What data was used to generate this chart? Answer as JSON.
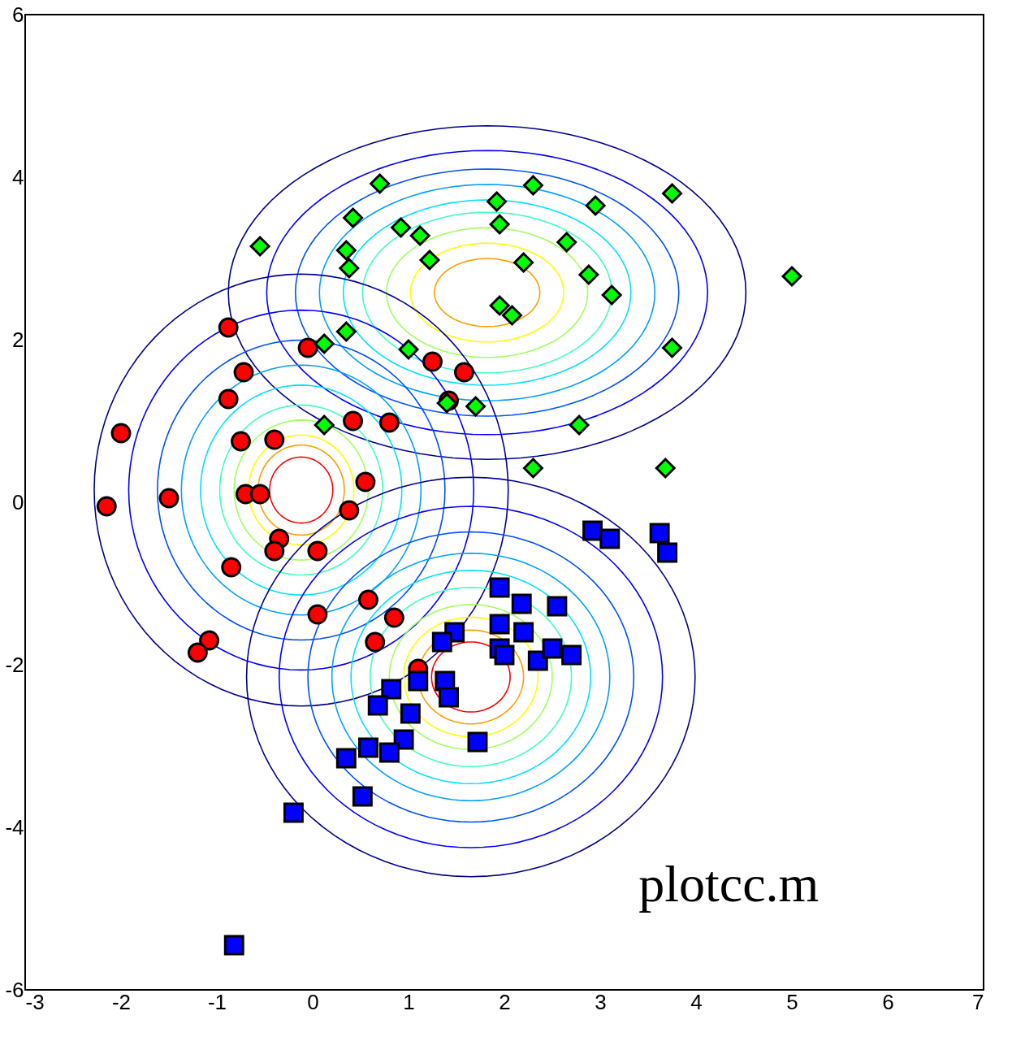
{
  "chart_data": {
    "type": "scatter",
    "xlim": [
      -3,
      7
    ],
    "ylim": [
      -6,
      6
    ],
    "xticks": [
      -3,
      -2,
      -1,
      0,
      1,
      2,
      3,
      4,
      5,
      6,
      7
    ],
    "yticks": [
      -6,
      -4,
      -2,
      0,
      2,
      4,
      6
    ],
    "grid": false,
    "legend": false,
    "annotations": [
      "plotcc.m"
    ],
    "series": [
      {
        "marker": "circle",
        "color": "#ff0000",
        "x": [
          -0.88,
          -0.05,
          -0.72,
          -0.88,
          -2.0,
          -0.75,
          -0.4,
          0.42,
          0.8,
          1.25,
          1.58,
          1.42,
          -2.15,
          -1.5,
          -0.7,
          -0.55,
          0.55,
          0.38,
          -0.35,
          -0.4,
          0.05,
          -0.85,
          0.05,
          0.58,
          0.85,
          0.65,
          -1.08,
          -1.2,
          1.1
        ],
        "values": [
          2.15,
          1.9,
          1.6,
          1.27,
          0.85,
          0.75,
          0.77,
          1.0,
          0.98,
          1.73,
          1.6,
          1.25,
          -0.05,
          0.05,
          0.1,
          0.1,
          0.25,
          -0.1,
          -0.45,
          -0.6,
          -0.6,
          -0.8,
          -1.38,
          -1.2,
          -1.42,
          -1.72,
          -1.7,
          -1.85,
          -2.05
        ]
      },
      {
        "marker": "diamond",
        "color": "#00ff00",
        "x": [
          0.7,
          2.3,
          3.75,
          0.42,
          1.92,
          1.95,
          2.95,
          -0.55,
          0.35,
          0.38,
          0.92,
          1.12,
          1.22,
          2.2,
          2.65,
          2.88,
          3.12,
          5.0,
          1.95,
          2.08,
          0.35,
          0.12,
          1.0,
          3.75,
          1.4,
          1.7,
          2.78,
          0.12,
          2.3,
          3.68
        ],
        "values": [
          3.92,
          3.9,
          3.8,
          3.5,
          3.7,
          3.42,
          3.65,
          3.15,
          3.1,
          2.88,
          3.38,
          3.28,
          2.98,
          2.95,
          3.2,
          2.8,
          2.55,
          2.78,
          2.42,
          2.3,
          2.1,
          1.95,
          1.88,
          1.9,
          1.22,
          1.18,
          0.95,
          0.95,
          0.42,
          0.42
        ]
      },
      {
        "marker": "square",
        "color": "#0000ff",
        "x": [
          2.92,
          3.1,
          3.62,
          3.7,
          1.95,
          2.18,
          2.55,
          1.95,
          2.2,
          1.48,
          1.35,
          1.95,
          2.0,
          2.35,
          2.5,
          2.7,
          1.1,
          1.38,
          1.42,
          0.82,
          0.68,
          1.02,
          0.95,
          1.72,
          0.58,
          0.8,
          0.35,
          0.52,
          -0.2,
          -0.82
        ],
        "values": [
          -0.35,
          -0.45,
          -0.38,
          -0.62,
          -1.05,
          -1.25,
          -1.28,
          -1.5,
          -1.6,
          -1.6,
          -1.72,
          -1.8,
          -1.88,
          -1.95,
          -1.8,
          -1.88,
          -2.2,
          -2.2,
          -2.4,
          -2.3,
          -2.5,
          -2.6,
          -2.92,
          -2.95,
          -3.02,
          -3.08,
          -3.15,
          -3.62,
          -3.82,
          -5.45
        ]
      }
    ]
  }
}
